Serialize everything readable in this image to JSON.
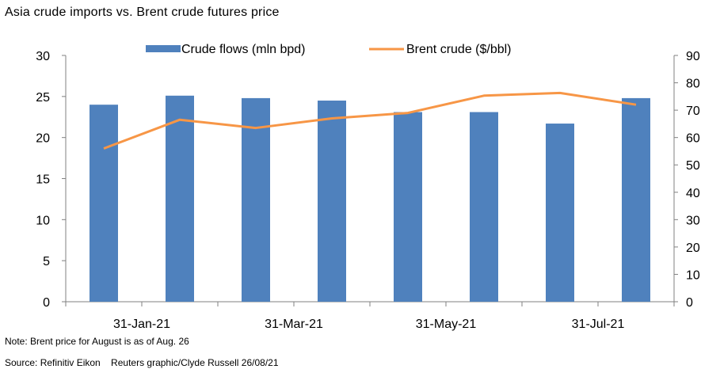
{
  "title": "Asia crude imports vs. Brent crude futures price",
  "note": "Note: Brent price for August is as of Aug. 26",
  "source": "Source: Refinitiv Eikon    Reuters graphic/Clyde Russell 26/08/21",
  "chart_data": {
    "type": "bar+line",
    "title": "Asia crude imports vs. Brent crude futures price",
    "categories": [
      "31-Jan-21",
      "28-Feb-21",
      "31-Mar-21",
      "30-Apr-21",
      "31-May-21",
      "30-Jun-21",
      "31-Jul-21",
      "31-Aug-21"
    ],
    "x_tick_labels": [
      "31-Jan-21",
      "",
      "31-Mar-21",
      "",
      "31-May-21",
      "",
      "31-Jul-21",
      ""
    ],
    "series": [
      {
        "name": "Crude flows (mln bpd)",
        "type": "bar",
        "axis": "left",
        "color": "#4f81bd",
        "values": [
          24.0,
          25.1,
          24.8,
          24.5,
          23.1,
          23.1,
          21.7,
          24.8
        ]
      },
      {
        "name": "Brent crude ($/bbl)",
        "type": "line",
        "axis": "right",
        "color": "#f79646",
        "values": [
          56,
          66.5,
          63.5,
          67,
          69,
          75.3,
          76.3,
          72
        ]
      }
    ],
    "y_left": {
      "min": 0,
      "max": 30,
      "ticks": [
        0,
        5,
        10,
        15,
        20,
        25,
        30
      ]
    },
    "y_right": {
      "min": 0,
      "max": 90,
      "ticks": [
        0,
        10,
        20,
        30,
        40,
        50,
        60,
        70,
        80,
        90
      ]
    },
    "legend_position": "top",
    "grid": false
  }
}
